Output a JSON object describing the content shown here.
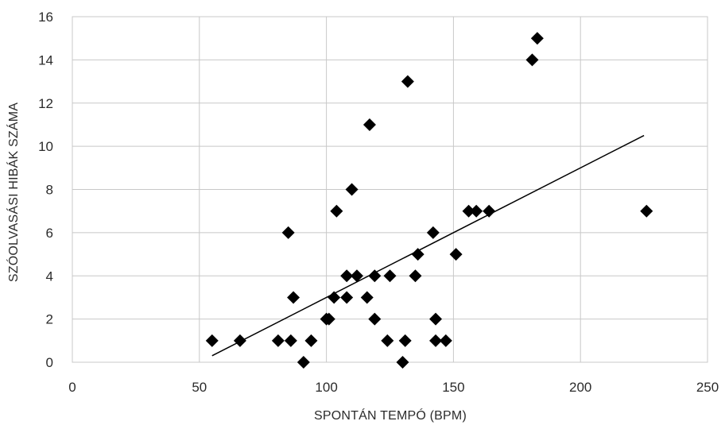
{
  "chart_data": {
    "type": "scatter",
    "title": "",
    "xlabel": "SPONTÁN TEMPÓ (BPM)",
    "ylabel": "SZÓOLVASÁSI HIBÁK SZÁMA",
    "xlim": [
      0,
      250
    ],
    "ylim": [
      0,
      16
    ],
    "x_ticks": [
      "0",
      "50",
      "100",
      "150",
      "200",
      "250"
    ],
    "y_ticks": [
      "0",
      "2",
      "4",
      "6",
      "8",
      "10",
      "12",
      "14",
      "16"
    ],
    "grid": true,
    "marker": "diamond",
    "marker_color": "#000000",
    "points": [
      {
        "x": 55,
        "y": 1
      },
      {
        "x": 66,
        "y": 1
      },
      {
        "x": 81,
        "y": 1
      },
      {
        "x": 86,
        "y": 1
      },
      {
        "x": 85,
        "y": 6
      },
      {
        "x": 87,
        "y": 3
      },
      {
        "x": 91,
        "y": 0
      },
      {
        "x": 94,
        "y": 1
      },
      {
        "x": 100,
        "y": 2
      },
      {
        "x": 101,
        "y": 2
      },
      {
        "x": 103,
        "y": 3
      },
      {
        "x": 104,
        "y": 7
      },
      {
        "x": 108,
        "y": 3
      },
      {
        "x": 108,
        "y": 4
      },
      {
        "x": 110,
        "y": 8
      },
      {
        "x": 112,
        "y": 4
      },
      {
        "x": 116,
        "y": 3
      },
      {
        "x": 117,
        "y": 11
      },
      {
        "x": 119,
        "y": 2
      },
      {
        "x": 119,
        "y": 4
      },
      {
        "x": 124,
        "y": 1
      },
      {
        "x": 125,
        "y": 4
      },
      {
        "x": 130,
        "y": 0
      },
      {
        "x": 131,
        "y": 1
      },
      {
        "x": 132,
        "y": 13
      },
      {
        "x": 135,
        "y": 4
      },
      {
        "x": 136,
        "y": 5
      },
      {
        "x": 142,
        "y": 6
      },
      {
        "x": 143,
        "y": 1
      },
      {
        "x": 143,
        "y": 2
      },
      {
        "x": 147,
        "y": 1
      },
      {
        "x": 151,
        "y": 5
      },
      {
        "x": 156,
        "y": 7
      },
      {
        "x": 159,
        "y": 7
      },
      {
        "x": 164,
        "y": 7
      },
      {
        "x": 181,
        "y": 14
      },
      {
        "x": 183,
        "y": 15
      },
      {
        "x": 226,
        "y": 7
      }
    ],
    "trendline": {
      "x": [
        55,
        225
      ],
      "y": [
        0.3,
        10.5
      ]
    }
  }
}
